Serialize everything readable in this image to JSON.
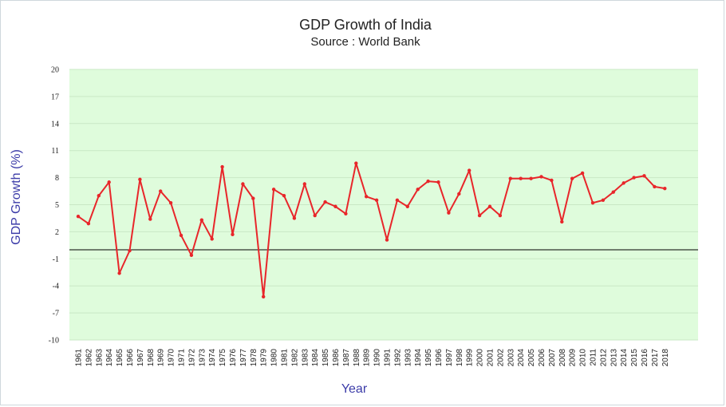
{
  "chart_data": {
    "type": "line",
    "title": "GDP Growth of India",
    "subtitle": "Source : World Bank",
    "xlabel": "Year",
    "ylabel": "GDP Growth (%)",
    "ylim": [
      -10,
      20
    ],
    "yticks": [
      20,
      17,
      14,
      11,
      8,
      5,
      2,
      -1,
      -4,
      -7,
      -10
    ],
    "grid": true,
    "colors": {
      "plot_bg": "#dffcdc",
      "grid": "#c9e8c5",
      "line": "#e8262a",
      "zero_line": "#000000"
    },
    "series": [
      {
        "name": "GDP Growth (%)",
        "x": [
          "1961",
          "1962",
          "1963",
          "1964",
          "1965",
          "1966",
          "1967",
          "1968",
          "1969",
          "1970",
          "1971",
          "1972",
          "1973",
          "1974",
          "1975",
          "1976",
          "1977",
          "1978",
          "1979",
          "1980",
          "1981",
          "1982",
          "1983",
          "1984",
          "1985",
          "1986",
          "1987",
          "1988",
          "1989",
          "1990",
          "1991",
          "1992",
          "1993",
          "1994",
          "1995",
          "1996",
          "1997",
          "1998",
          "1999",
          "2000",
          "2001",
          "2002",
          "2003",
          "2004",
          "2005",
          "2006",
          "2007",
          "2008",
          "2009",
          "2010",
          "2011",
          "2012",
          "2013",
          "2014",
          "2015",
          "2016",
          "2017",
          "2018"
        ],
        "values": [
          3.7,
          2.9,
          6.0,
          7.5,
          -2.6,
          -0.1,
          7.8,
          3.4,
          6.5,
          5.2,
          1.6,
          -0.6,
          3.3,
          1.2,
          9.2,
          1.7,
          7.3,
          5.7,
          -5.2,
          6.7,
          6.0,
          3.5,
          7.3,
          3.8,
          5.3,
          4.8,
          4.0,
          9.6,
          5.9,
          5.5,
          1.1,
          5.5,
          4.8,
          6.7,
          7.6,
          7.5,
          4.1,
          6.2,
          8.8,
          3.8,
          4.8,
          3.8,
          7.9,
          7.9,
          7.9,
          8.1,
          7.7,
          3.1,
          7.9,
          8.5,
          5.2,
          5.5,
          6.4,
          7.4,
          8.0,
          8.2,
          7.0,
          6.8
        ]
      }
    ]
  }
}
